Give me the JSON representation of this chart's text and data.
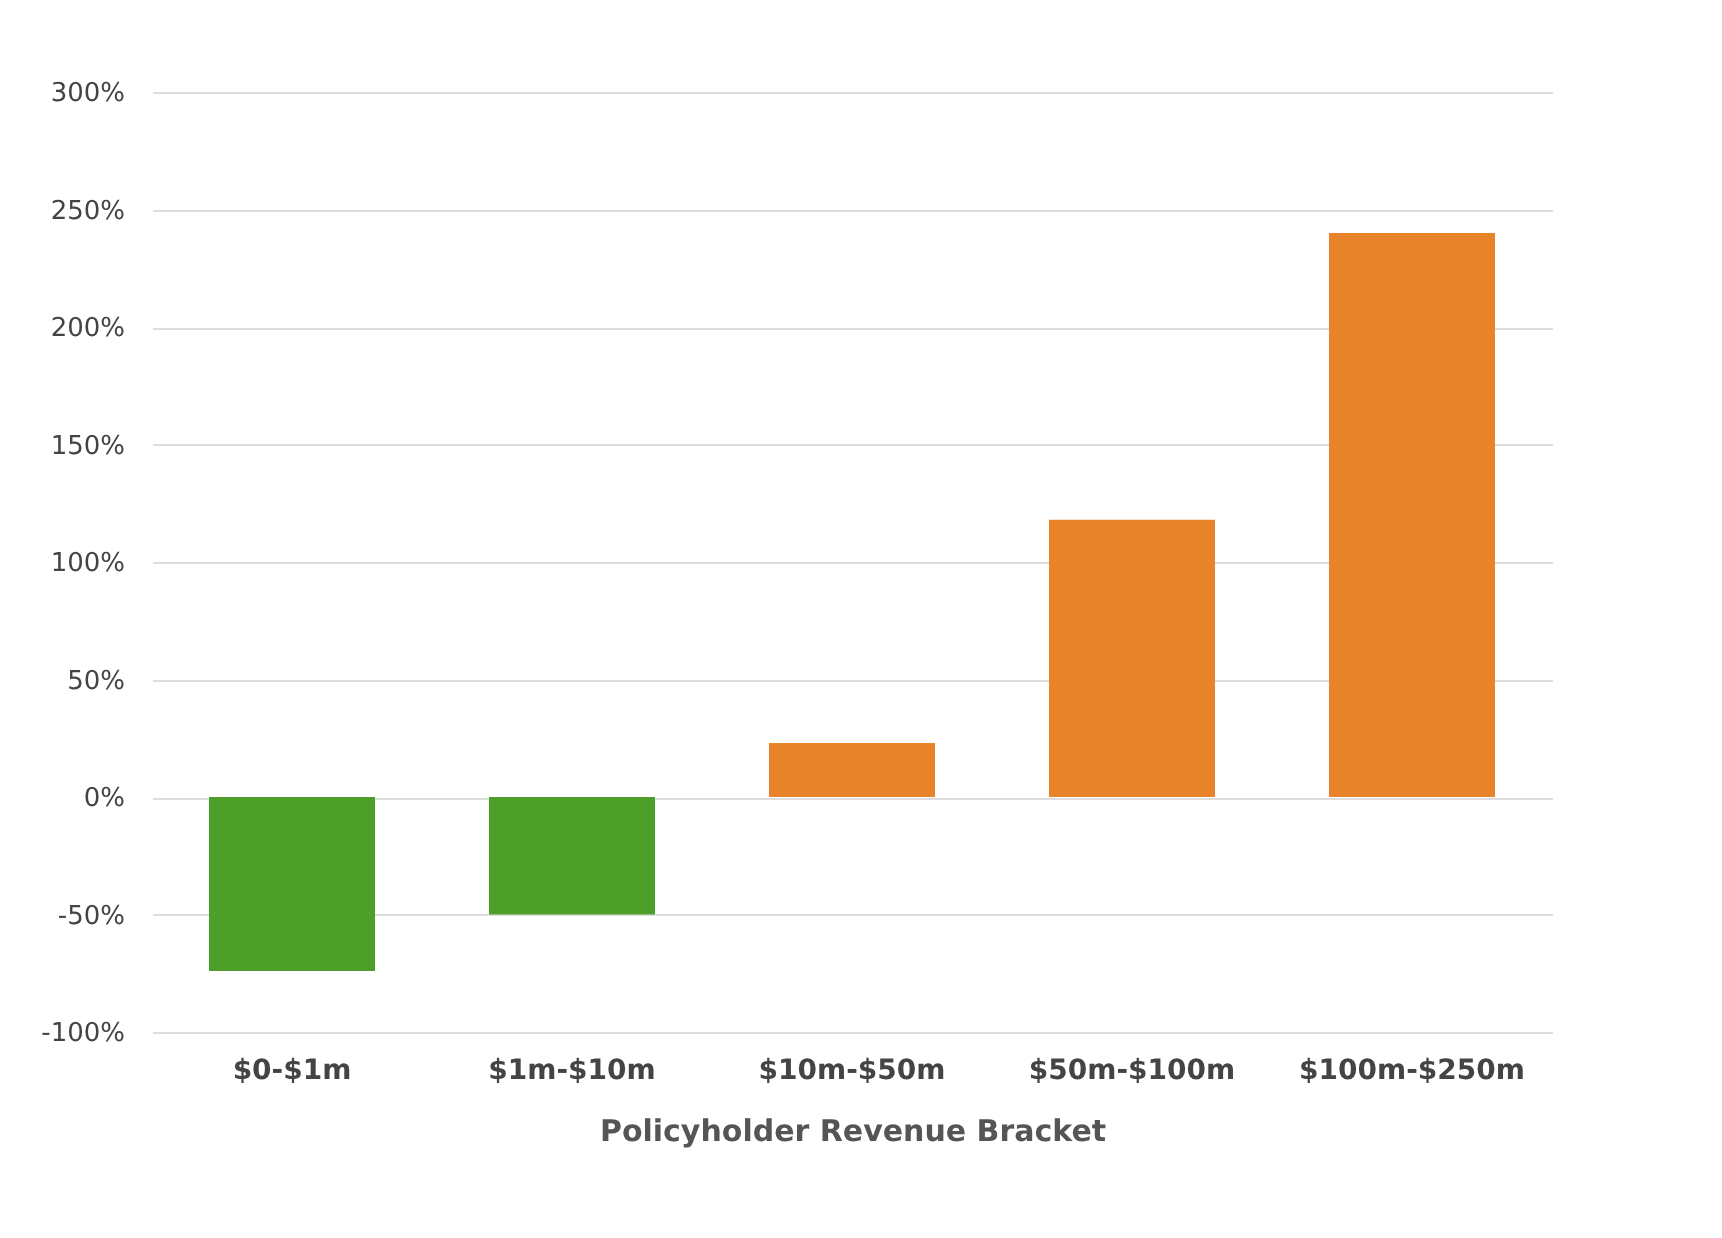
{
  "chart_data": {
    "type": "bar",
    "xlabel": "Policyholder Revenue Bracket",
    "categories": [
      "$0-$1m",
      "$1m-$10m",
      "$10m-$50m",
      "$50m-$100m",
      "$100m-$250m"
    ],
    "values": [
      -74,
      -50,
      23,
      118,
      240
    ],
    "colors": [
      "#4e9e2a",
      "#4e9e2a",
      "#e8832a",
      "#e8832a",
      "#e8832a"
    ],
    "ylim": [
      -100,
      300
    ],
    "yticks": [
      {
        "value": -100,
        "label": "-100%"
      },
      {
        "value": -50,
        "label": "-50%"
      },
      {
        "value": 0,
        "label": "0%"
      },
      {
        "value": 50,
        "label": "50%"
      },
      {
        "value": 100,
        "label": "100%"
      },
      {
        "value": 150,
        "label": "150%"
      },
      {
        "value": 200,
        "label": "200%"
      },
      {
        "value": 250,
        "label": "250%"
      },
      {
        "value": 300,
        "label": "300%"
      }
    ],
    "grid": "y"
  }
}
